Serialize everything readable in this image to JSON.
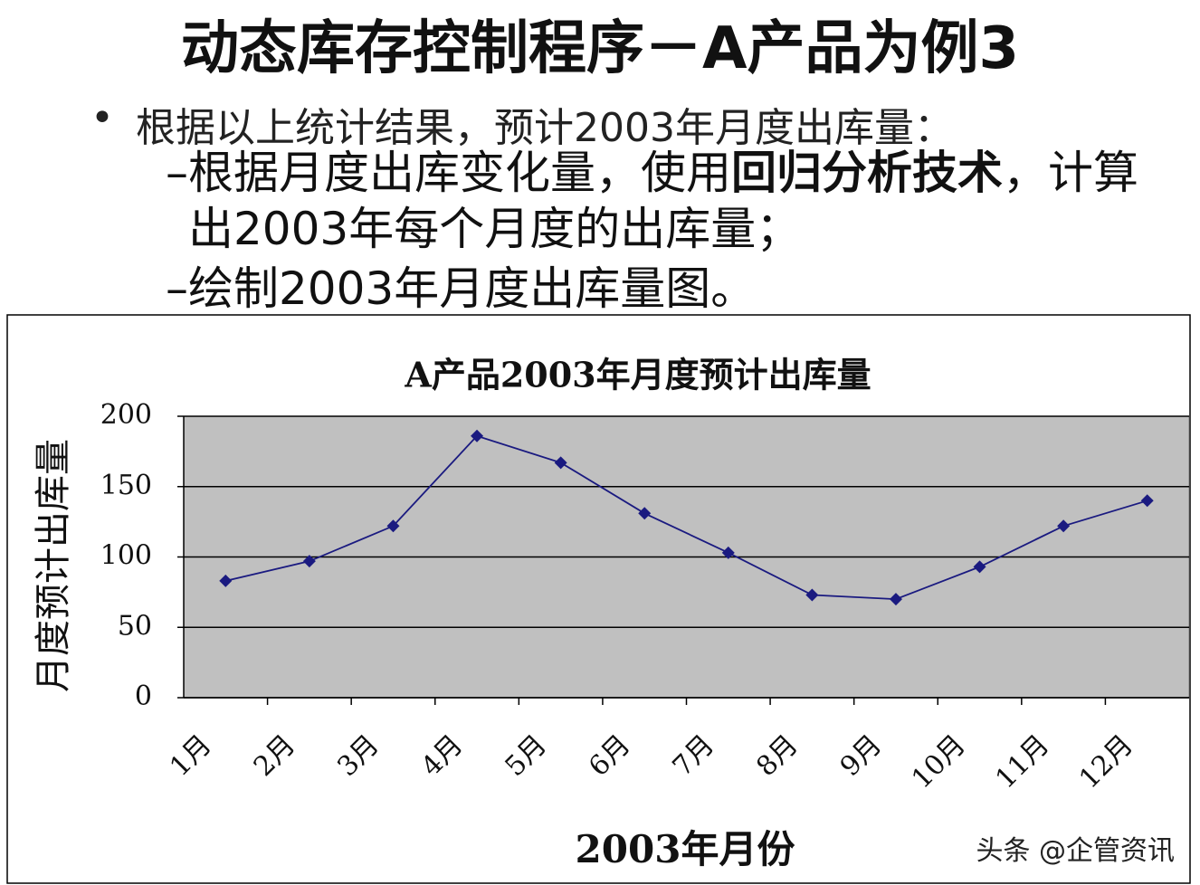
{
  "slide": {
    "title": "动态库存控制程序－A产品为例3",
    "bullet": "根据以上统计结果，预计2003年月度出库量：",
    "sub_bullets": [
      {
        "parts": [
          {
            "text": "根据月度出库变化量，使用"
          },
          {
            "text": "回归分析技术",
            "bold": true
          },
          {
            "text": "，计算出2003年每个月度的出库量；"
          }
        ]
      },
      {
        "parts": [
          {
            "text": "绘制2003年月度出库量图。"
          }
        ]
      }
    ]
  },
  "watermark": "头条 @企管资讯",
  "chart_data": {
    "type": "line",
    "title": "A产品2003年月度预计出库量",
    "x_label": "2003年月份",
    "y_label": "月度预计出库量",
    "categories": [
      "1月",
      "2月",
      "3月",
      "4月",
      "5月",
      "6月",
      "7月",
      "8月",
      "9月",
      "10月",
      "11月",
      "12月"
    ],
    "values": [
      83,
      97,
      122,
      186,
      167,
      131,
      103,
      73,
      70,
      93,
      122,
      140
    ],
    "color": "#1a1a80",
    "plot_background": "#c0c0c0",
    "ylim": [
      0,
      200
    ],
    "yticks": [
      0,
      50,
      100,
      150,
      200
    ],
    "grid": true
  }
}
